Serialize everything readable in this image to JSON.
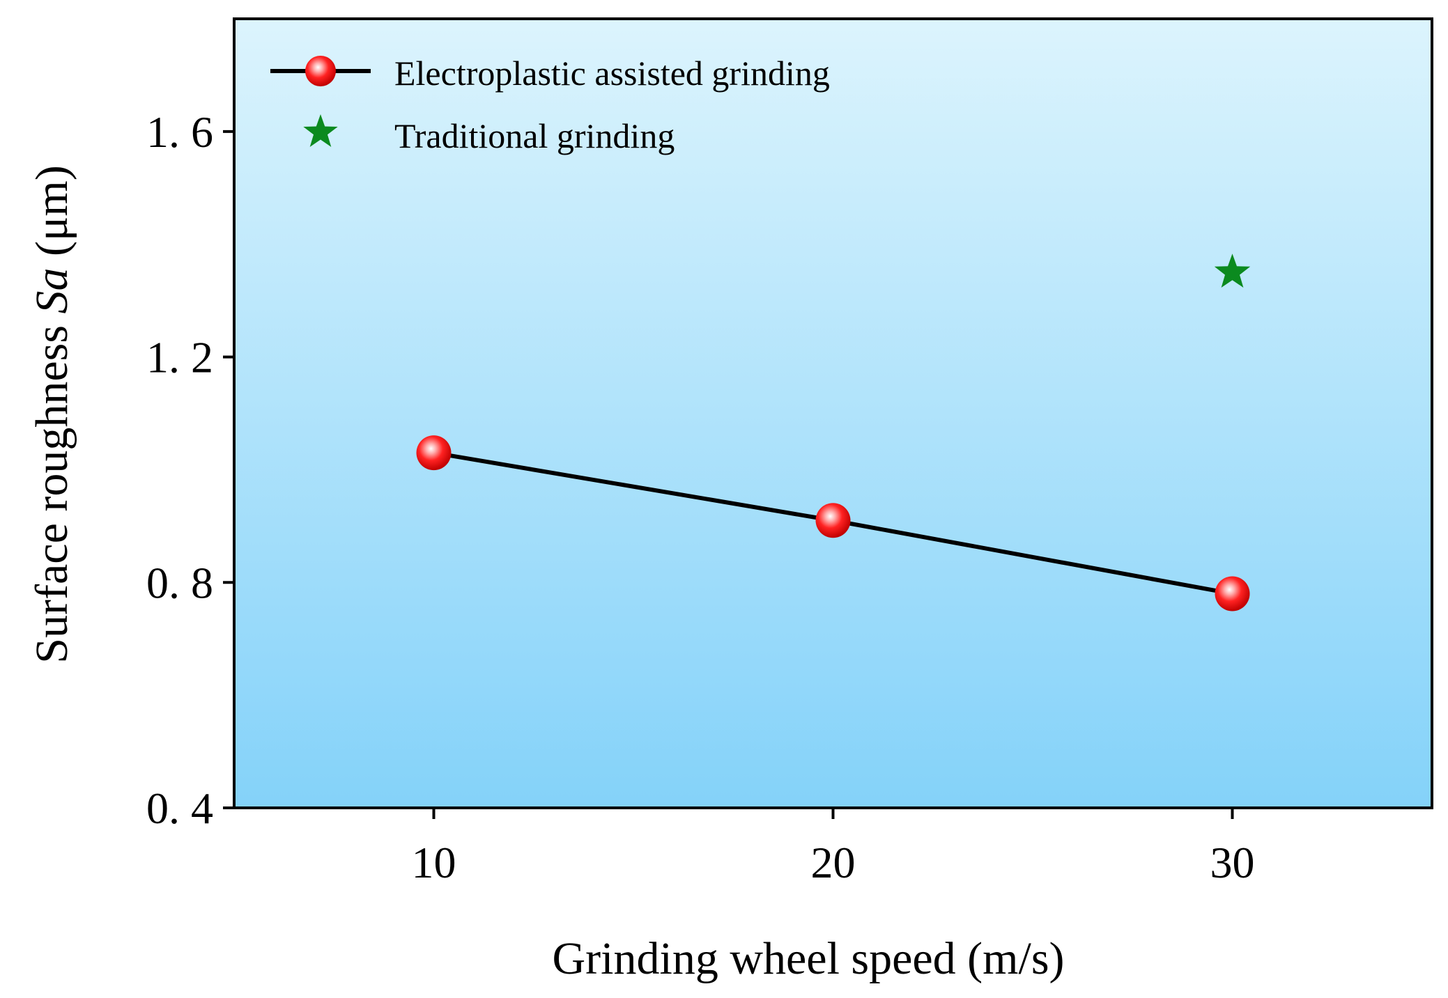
{
  "chart_data": {
    "type": "line",
    "xlabel": "Grinding wheel speed (m/s)",
    "ylabel_prefix": "Surface roughness ",
    "ylabel_italic": "Sa",
    "ylabel_suffix": " (μm)",
    "xlim": [
      5,
      35
    ],
    "ylim": [
      0.4,
      1.8
    ],
    "xticks": [
      10,
      20,
      30
    ],
    "yticks": [
      0.4,
      0.8,
      1.2,
      1.6
    ],
    "ytick_labels": [
      "0. 4",
      "0. 8",
      "1. 2",
      "1. 6"
    ],
    "xtick_labels": [
      "10",
      "20",
      "30"
    ],
    "legend_position": "top-left",
    "colors": {
      "background_top": "#dcf4fd",
      "background_bottom": "#84d2f9",
      "line": "#000000",
      "marker": "#ee1111",
      "star": "#0b8a1f"
    },
    "series": [
      {
        "name": "Electroplastic assisted grinding",
        "marker": "circle",
        "x": [
          10,
          20,
          30
        ],
        "y": [
          1.03,
          0.91,
          0.78
        ]
      },
      {
        "name": "Traditional grinding",
        "marker": "star",
        "x": [
          30
        ],
        "y": [
          1.35
        ]
      }
    ]
  }
}
